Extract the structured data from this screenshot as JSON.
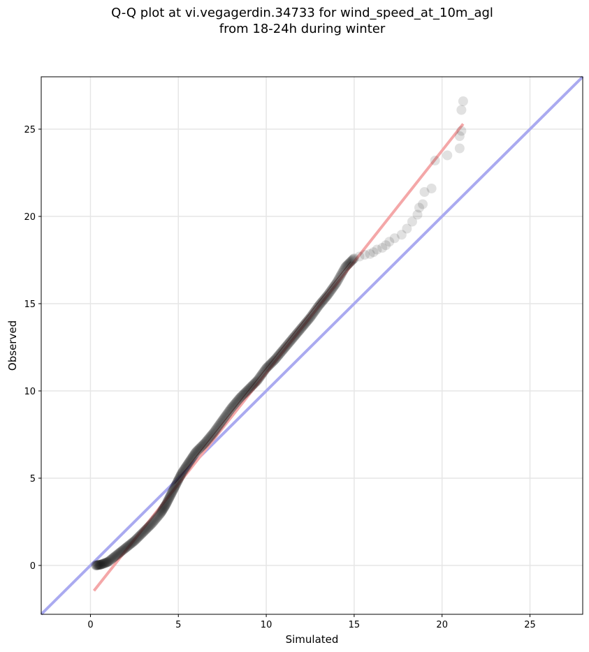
{
  "chart_data": {
    "type": "scatter",
    "title_line1": "Q-Q plot at vi.vegagerdin.34733 for wind_speed_at_10m_agl",
    "title_line2": "from 18-24h during winter",
    "xlabel": "Simulated",
    "ylabel": "Observed",
    "xlim": [
      -2.8,
      28
    ],
    "ylim": [
      -2.8,
      28
    ],
    "xticks": [
      0,
      5,
      10,
      15,
      20,
      25
    ],
    "yticks": [
      0,
      5,
      10,
      15,
      20,
      25
    ],
    "grid": true,
    "colors": {
      "points": "#1a1a1a",
      "identity_line": "#aaaaf0",
      "fit_line": "#f4a7a8",
      "fit_line_core": "#8b0000"
    },
    "identity_line": {
      "x": [
        -2.8,
        28
      ],
      "y": [
        -2.8,
        28
      ]
    },
    "fit_line": {
      "x": [
        0.2,
        21.2
      ],
      "y": [
        -1.45,
        25.3
      ]
    },
    "quantile_curve": {
      "x": [
        0.3,
        0.6,
        1.0,
        1.5,
        2.0,
        2.5,
        3.0,
        3.5,
        4.0,
        4.3,
        4.6,
        4.9,
        5.2,
        5.6,
        6.0,
        6.5,
        7.0,
        7.5,
        8.0,
        8.5,
        9.0,
        9.5,
        10.0,
        10.5,
        11.0,
        11.5,
        12.0,
        12.5,
        13.0,
        13.5,
        14.0,
        14.5,
        15.0
      ],
      "y": [
        0.0,
        0.05,
        0.2,
        0.6,
        1.0,
        1.4,
        1.9,
        2.4,
        3.0,
        3.5,
        4.1,
        4.7,
        5.3,
        5.9,
        6.5,
        7.0,
        7.6,
        8.3,
        9.0,
        9.6,
        10.1,
        10.6,
        11.3,
        11.8,
        12.4,
        13.0,
        13.6,
        14.2,
        14.9,
        15.5,
        16.2,
        17.1,
        17.6
      ]
    },
    "tail_points": {
      "x": [
        15.3,
        15.6,
        15.9,
        16.1,
        16.3,
        16.6,
        16.8,
        17.0,
        17.3,
        17.7,
        18.0,
        18.3,
        18.6,
        18.7,
        18.9,
        19.0,
        19.4,
        19.6,
        20.3,
        21.0,
        21.0,
        21.1,
        21.1,
        21.2
      ],
      "y": [
        17.7,
        17.8,
        17.85,
        17.95,
        18.1,
        18.2,
        18.35,
        18.55,
        18.75,
        18.95,
        19.3,
        19.7,
        20.1,
        20.5,
        20.7,
        21.4,
        21.6,
        23.2,
        23.5,
        23.9,
        24.6,
        24.9,
        26.1,
        26.6
      ]
    }
  }
}
